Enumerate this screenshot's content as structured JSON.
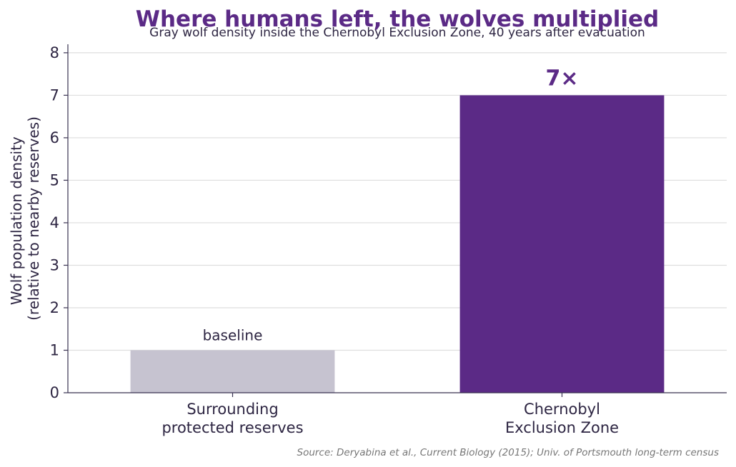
{
  "chart_data": {
    "type": "bar",
    "title": "Where humans left, the wolves multiplied",
    "subtitle": "Gray wolf density inside the Chernobyl Exclusion Zone, 40 years after evacuation",
    "ylabel_lines": [
      "Wolf population density",
      "(relative to nearby reserves)"
    ],
    "categories": [
      [
        "Surrounding",
        "protected reserves"
      ],
      [
        "Chernobyl",
        "Exclusion Zone"
      ]
    ],
    "values": [
      1,
      7
    ],
    "bar_labels": [
      "baseline",
      "7×"
    ],
    "colors": [
      "#c6c3d0",
      "#5b2a86"
    ],
    "ylim": [
      0,
      8.2
    ],
    "yticks": [
      0,
      1,
      2,
      3,
      4,
      5,
      6,
      7,
      8
    ],
    "grid": true,
    "source": "Source: Deryabina et al., Current Biology (2015); Univ. of Portsmouth long-term census"
  }
}
